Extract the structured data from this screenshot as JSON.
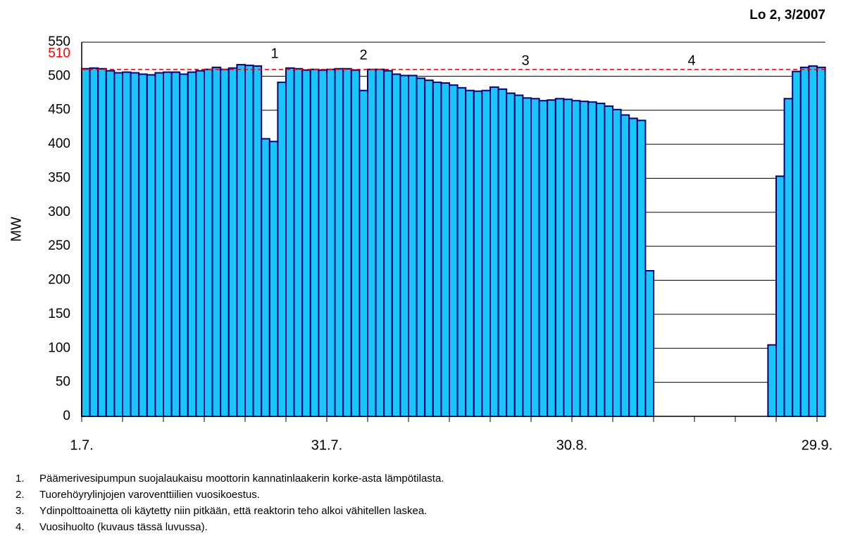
{
  "chart_data": {
    "type": "bar",
    "title": "Lo 2, 3/2007",
    "y_label": "MW",
    "categories": [
      "1.7.",
      null,
      null,
      null,
      null,
      null,
      null,
      null,
      null,
      null,
      null,
      null,
      null,
      null,
      null,
      null,
      null,
      null,
      null,
      null,
      null,
      null,
      null,
      null,
      null,
      null,
      null,
      null,
      null,
      null,
      "31.7.",
      null,
      null,
      null,
      null,
      null,
      null,
      null,
      null,
      null,
      null,
      null,
      null,
      null,
      null,
      null,
      null,
      null,
      null,
      null,
      null,
      null,
      null,
      null,
      null,
      null,
      null,
      null,
      null,
      null,
      "30.8.",
      null,
      null,
      null,
      null,
      null,
      null,
      null,
      null,
      null,
      null,
      null,
      null,
      null,
      null,
      null,
      null,
      null,
      null,
      null,
      null,
      null,
      null,
      null,
      null,
      null,
      null,
      null,
      null,
      null,
      "29.9."
    ],
    "values": [
      511,
      512,
      511,
      508,
      505,
      506,
      505,
      503,
      502,
      505,
      506,
      506,
      503,
      506,
      508,
      510,
      513,
      510,
      512,
      517,
      516,
      515,
      408,
      404,
      491,
      512,
      511,
      509,
      510,
      509,
      510,
      511,
      511,
      509,
      479,
      510,
      510,
      508,
      503,
      501,
      501,
      497,
      494,
      491,
      490,
      487,
      483,
      479,
      478,
      479,
      484,
      481,
      475,
      472,
      468,
      467,
      464,
      465,
      467,
      466,
      464,
      463,
      462,
      460,
      456,
      451,
      443,
      438,
      435,
      214,
      null,
      null,
      null,
      null,
      null,
      null,
      null,
      null,
      null,
      null,
      null,
      null,
      null,
      null,
      105,
      353,
      467,
      507,
      513,
      515,
      513
    ],
    "color": "#19c6f5",
    "edge_color": "#000080",
    "ylim": [
      0,
      550
    ],
    "yticks": [
      0,
      50,
      100,
      150,
      200,
      250,
      300,
      350,
      400,
      450,
      500,
      550
    ],
    "grid": true,
    "reference_line": {
      "value": 510,
      "color": "#ff0000"
    },
    "annotations": [
      "1",
      "2",
      "3",
      "4"
    ],
    "notes": [
      {
        "number": "1.",
        "text": "Päämerivesipumpun suojalaukaisu moottorin kannatinlaakerin korke-asta lämpötilasta."
      },
      {
        "number": "2.",
        "text": "Tuorehöyrylinjojen varoventtiilien vuosikoestus."
      },
      {
        "number": "3.",
        "text": "Ydinpolttoainetta oli käytetty niin pitkään, että reaktorin teho alkoi vähitellen laskea."
      },
      {
        "number": "4.",
        "text": "Vuosihuolto (kuvaus tässä luvussa)."
      }
    ]
  }
}
